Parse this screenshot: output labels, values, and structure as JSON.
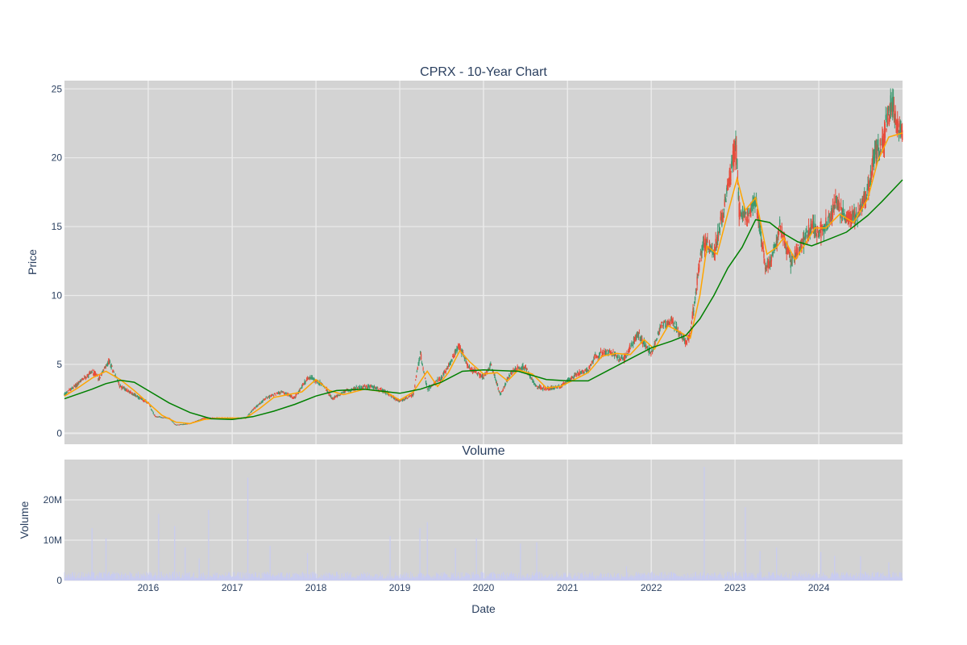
{
  "colors": {
    "plot_bg": "#d3d3d3",
    "grid": "#ebebeb",
    "increasing": "#3d9970",
    "decreasing": "#e74c3c",
    "ma_short": "#ffa500",
    "ma_long": "#008000",
    "volume": "#c8cbf2",
    "text": "#2a3f5f"
  },
  "chart_data": [
    {
      "type": "candlestick",
      "title": "CPRX - 10-Year Chart",
      "xlabel": "",
      "ylabel": "Price",
      "xlim": [
        "2015-01-01",
        "2024-12-31"
      ],
      "ylim": [
        -0.8,
        25.6
      ],
      "yticks": [
        0,
        5,
        10,
        15,
        20,
        25
      ],
      "grid": true,
      "legend": "none",
      "series": [
        {
          "kind": "price",
          "points": [
            [
              "2015-01-01",
              2.8
            ],
            [
              "2015-03-01",
              3.6
            ],
            [
              "2015-05-01",
              4.5
            ],
            [
              "2015-06-01",
              4.0
            ],
            [
              "2015-07-15",
              5.2
            ],
            [
              "2015-09-01",
              3.4
            ],
            [
              "2015-11-01",
              2.8
            ],
            [
              "2016-01-01",
              2.2
            ],
            [
              "2016-02-01",
              1.2
            ],
            [
              "2016-04-01",
              1.1
            ],
            [
              "2016-05-01",
              0.6
            ],
            [
              "2016-07-01",
              0.7
            ],
            [
              "2016-09-01",
              1.1
            ],
            [
              "2016-11-01",
              1.1
            ],
            [
              "2017-01-01",
              1.1
            ],
            [
              "2017-03-01",
              1.1
            ],
            [
              "2017-04-01",
              1.7
            ],
            [
              "2017-06-01",
              2.6
            ],
            [
              "2017-08-01",
              3.0
            ],
            [
              "2017-10-01",
              2.6
            ],
            [
              "2017-12-01",
              4.1
            ],
            [
              "2018-02-01",
              3.5
            ],
            [
              "2018-03-15",
              2.5
            ],
            [
              "2018-05-01",
              3.0
            ],
            [
              "2018-07-01",
              3.3
            ],
            [
              "2018-09-01",
              3.4
            ],
            [
              "2018-11-01",
              3.0
            ],
            [
              "2019-01-01",
              2.3
            ],
            [
              "2019-03-01",
              2.8
            ],
            [
              "2019-04-01",
              5.8
            ],
            [
              "2019-05-01",
              3.2
            ],
            [
              "2019-07-01",
              4.0
            ],
            [
              "2019-08-01",
              4.8
            ],
            [
              "2019-09-15",
              6.4
            ],
            [
              "2019-11-01",
              4.7
            ],
            [
              "2020-01-01",
              4.1
            ],
            [
              "2020-02-01",
              5.0
            ],
            [
              "2020-03-15",
              2.8
            ],
            [
              "2020-05-01",
              4.5
            ],
            [
              "2020-07-01",
              4.8
            ],
            [
              "2020-08-15",
              3.4
            ],
            [
              "2020-10-01",
              3.2
            ],
            [
              "2020-12-01",
              3.4
            ],
            [
              "2021-02-01",
              4.2
            ],
            [
              "2021-04-01",
              4.6
            ],
            [
              "2021-05-01",
              5.6
            ],
            [
              "2021-07-01",
              5.9
            ],
            [
              "2021-09-01",
              5.3
            ],
            [
              "2021-11-01",
              7.2
            ],
            [
              "2022-01-01",
              5.8
            ],
            [
              "2022-02-15",
              7.8
            ],
            [
              "2022-04-01",
              8.2
            ],
            [
              "2022-06-01",
              6.5
            ],
            [
              "2022-06-20",
              7.2
            ],
            [
              "2022-07-20",
              11.0
            ],
            [
              "2022-08-15",
              14.0
            ],
            [
              "2022-10-01",
              13.0
            ],
            [
              "2022-11-15",
              16.5
            ],
            [
              "2022-12-15",
              19.0
            ],
            [
              "2023-01-05",
              21.0
            ],
            [
              "2023-01-20",
              16.0
            ],
            [
              "2023-03-01",
              15.8
            ],
            [
              "2023-04-01",
              17.0
            ],
            [
              "2023-05-15",
              12.0
            ],
            [
              "2023-06-15",
              12.8
            ],
            [
              "2023-07-15",
              15.0
            ],
            [
              "2023-09-01",
              12.5
            ],
            [
              "2023-10-15",
              13.5
            ],
            [
              "2023-12-01",
              15.0
            ],
            [
              "2024-01-01",
              14.6
            ],
            [
              "2024-02-01",
              15.1
            ],
            [
              "2024-03-15",
              16.6
            ],
            [
              "2024-05-01",
              15.7
            ],
            [
              "2024-06-15",
              15.6
            ],
            [
              "2024-08-01",
              17.5
            ],
            [
              "2024-09-01",
              20.4
            ],
            [
              "2024-10-01",
              20.8
            ],
            [
              "2024-11-10",
              23.9
            ],
            [
              "2024-12-31",
              21.6
            ]
          ]
        },
        {
          "kind": "ma_short",
          "points": [
            [
              "2015-01-01",
              2.7
            ],
            [
              "2015-03-01",
              3.3
            ],
            [
              "2015-05-01",
              4.0
            ],
            [
              "2015-07-01",
              4.5
            ],
            [
              "2015-09-01",
              3.9
            ],
            [
              "2015-11-01",
              3.1
            ],
            [
              "2016-01-01",
              2.2
            ],
            [
              "2016-03-01",
              1.3
            ],
            [
              "2016-05-01",
              0.8
            ],
            [
              "2016-07-01",
              0.7
            ],
            [
              "2016-09-01",
              1.0
            ],
            [
              "2016-11-01",
              1.1
            ],
            [
              "2017-03-01",
              1.1
            ],
            [
              "2017-05-01",
              1.8
            ],
            [
              "2017-07-01",
              2.6
            ],
            [
              "2017-09-01",
              2.8
            ],
            [
              "2017-11-01",
              3.0
            ],
            [
              "2018-01-01",
              3.9
            ],
            [
              "2018-03-01",
              3.1
            ],
            [
              "2018-05-01",
              2.8
            ],
            [
              "2018-08-01",
              3.2
            ],
            [
              "2018-11-01",
              3.0
            ],
            [
              "2019-01-01",
              2.4
            ],
            [
              "2019-03-01",
              3.0
            ],
            [
              "2019-05-01",
              4.5
            ],
            [
              "2019-06-15",
              3.4
            ],
            [
              "2019-08-01",
              4.4
            ],
            [
              "2019-09-20",
              6.0
            ],
            [
              "2019-11-01",
              5.2
            ],
            [
              "2020-01-01",
              4.3
            ],
            [
              "2020-03-01",
              4.4
            ],
            [
              "2020-04-15",
              3.8
            ],
            [
              "2020-06-01",
              4.6
            ],
            [
              "2020-08-01",
              4.3
            ],
            [
              "2020-10-01",
              3.3
            ],
            [
              "2020-12-01",
              3.4
            ],
            [
              "2021-02-01",
              3.9
            ],
            [
              "2021-04-01",
              4.4
            ],
            [
              "2021-06-01",
              5.6
            ],
            [
              "2021-08-01",
              5.8
            ],
            [
              "2021-10-01",
              5.7
            ],
            [
              "2021-12-01",
              6.8
            ],
            [
              "2022-01-15",
              6.1
            ],
            [
              "2022-03-15",
              7.8
            ],
            [
              "2022-05-01",
              7.4
            ],
            [
              "2022-06-20",
              6.9
            ],
            [
              "2022-08-01",
              10.0
            ],
            [
              "2022-09-01",
              13.6
            ],
            [
              "2022-10-15",
              13.0
            ],
            [
              "2022-12-01",
              16.0
            ],
            [
              "2023-01-10",
              18.5
            ],
            [
              "2023-02-15",
              16.2
            ],
            [
              "2023-04-01",
              17.1
            ],
            [
              "2023-05-20",
              13.0
            ],
            [
              "2023-07-01",
              13.5
            ],
            [
              "2023-08-01",
              14.2
            ],
            [
              "2023-09-20",
              12.6
            ],
            [
              "2023-11-01",
              13.7
            ],
            [
              "2023-12-15",
              14.9
            ],
            [
              "2024-02-01",
              14.9
            ],
            [
              "2024-04-01",
              15.9
            ],
            [
              "2024-06-01",
              15.3
            ],
            [
              "2024-08-01",
              17.0
            ],
            [
              "2024-09-15",
              19.8
            ],
            [
              "2024-11-01",
              21.5
            ],
            [
              "2024-12-31",
              21.8
            ]
          ]
        },
        {
          "kind": "ma_long",
          "points": [
            [
              "2015-01-01",
              2.5
            ],
            [
              "2015-05-01",
              3.2
            ],
            [
              "2015-07-01",
              3.6
            ],
            [
              "2015-09-01",
              3.85
            ],
            [
              "2015-11-01",
              3.7
            ],
            [
              "2016-01-01",
              3.1
            ],
            [
              "2016-04-01",
              2.2
            ],
            [
              "2016-07-01",
              1.5
            ],
            [
              "2016-10-01",
              1.05
            ],
            [
              "2017-01-01",
              1.0
            ],
            [
              "2017-04-01",
              1.2
            ],
            [
              "2017-07-01",
              1.6
            ],
            [
              "2017-10-01",
              2.1
            ],
            [
              "2018-01-01",
              2.7
            ],
            [
              "2018-04-01",
              3.1
            ],
            [
              "2018-08-01",
              3.2
            ],
            [
              "2019-01-01",
              2.9
            ],
            [
              "2019-04-01",
              3.2
            ],
            [
              "2019-07-01",
              3.7
            ],
            [
              "2019-10-01",
              4.5
            ],
            [
              "2020-01-01",
              4.6
            ],
            [
              "2020-06-01",
              4.5
            ],
            [
              "2020-10-01",
              3.9
            ],
            [
              "2021-01-01",
              3.8
            ],
            [
              "2021-04-01",
              3.8
            ],
            [
              "2021-07-01",
              4.6
            ],
            [
              "2021-10-01",
              5.4
            ],
            [
              "2022-01-01",
              6.2
            ],
            [
              "2022-04-01",
              6.7
            ],
            [
              "2022-06-01",
              7.1
            ],
            [
              "2022-08-01",
              8.3
            ],
            [
              "2022-10-01",
              10.0
            ],
            [
              "2022-12-01",
              12.0
            ],
            [
              "2023-02-01",
              13.5
            ],
            [
              "2023-04-01",
              15.5
            ],
            [
              "2023-06-01",
              15.3
            ],
            [
              "2023-08-01",
              14.5
            ],
            [
              "2023-10-01",
              13.9
            ],
            [
              "2023-12-01",
              13.6
            ],
            [
              "2024-02-01",
              14.0
            ],
            [
              "2024-05-01",
              14.6
            ],
            [
              "2024-08-01",
              15.8
            ],
            [
              "2024-10-01",
              16.8
            ],
            [
              "2024-12-31",
              18.4
            ]
          ]
        }
      ]
    },
    {
      "type": "bar",
      "title": "Volume",
      "xlabel": "Date",
      "ylabel": "Volume",
      "xlim": [
        "2015-01-01",
        "2024-12-31"
      ],
      "ylim": [
        0,
        30000000
      ],
      "yticks": [
        0,
        10000000,
        20000000
      ],
      "ytick_labels": [
        "0",
        "10M",
        "20M"
      ],
      "xticks": [
        "2016-01-01",
        "2017-01-01",
        "2018-01-01",
        "2019-01-01",
        "2020-01-01",
        "2021-01-01",
        "2022-01-01",
        "2023-01-01",
        "2024-01-01"
      ],
      "xtick_labels": [
        "2016",
        "2017",
        "2018",
        "2019",
        "2020",
        "2021",
        "2022",
        "2023",
        "2024"
      ],
      "grid": true,
      "spikes": [
        [
          "2015-05-01",
          13000000
        ],
        [
          "2015-07-01",
          10500000
        ],
        [
          "2016-02-15",
          16500000
        ],
        [
          "2016-04-25",
          13500000
        ],
        [
          "2016-06-10",
          8200000
        ],
        [
          "2016-08-10",
          5500000
        ],
        [
          "2016-09-20",
          17500000
        ],
        [
          "2017-03-10",
          25500000
        ],
        [
          "2017-06-15",
          8600000
        ],
        [
          "2017-11-25",
          6800000
        ],
        [
          "2018-11-20",
          11000000
        ],
        [
          "2019-03-30",
          13000000
        ],
        [
          "2019-05-01",
          14500000
        ],
        [
          "2019-09-01",
          8000000
        ],
        [
          "2019-12-01",
          10500000
        ],
        [
          "2020-06-10",
          9200000
        ],
        [
          "2020-08-20",
          9500000
        ],
        [
          "2021-09-15",
          3500000
        ],
        [
          "2022-08-20",
          28200000
        ],
        [
          "2023-02-15",
          18200000
        ],
        [
          "2023-04-20",
          7300000
        ],
        [
          "2023-07-01",
          8200000
        ],
        [
          "2024-01-10",
          7100000
        ],
        [
          "2024-03-10",
          6100000
        ],
        [
          "2024-07-01",
          6000000
        ],
        [
          "2024-11-01",
          4500000
        ]
      ]
    }
  ]
}
